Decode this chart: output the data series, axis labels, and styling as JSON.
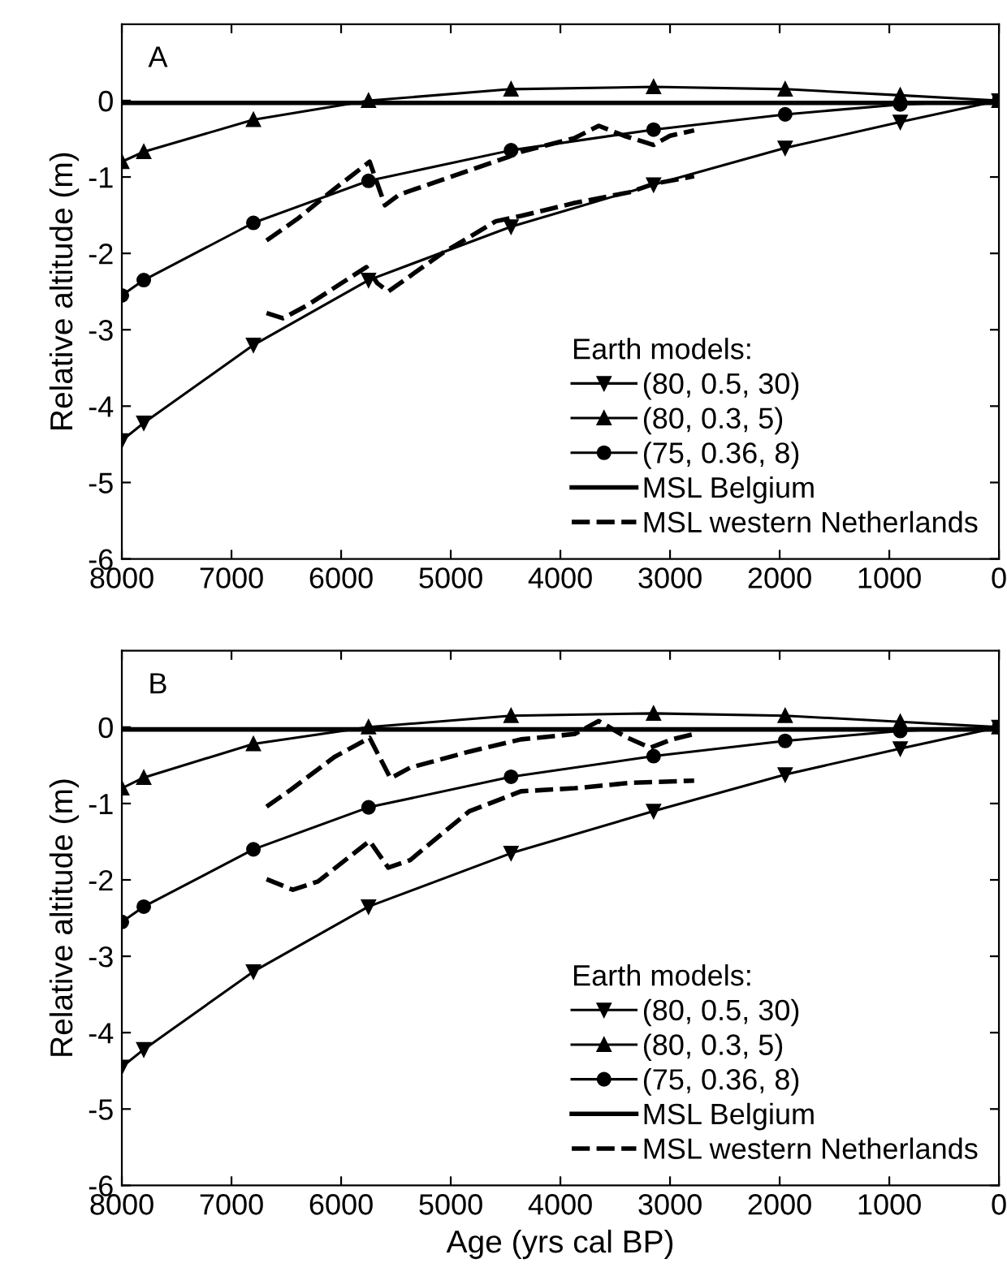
{
  "chart_data": [
    {
      "type": "line",
      "title": "A",
      "ylabel": "Relative altitude (m)",
      "legend_title": "Earth models:",
      "legend": "lower right",
      "grid": false,
      "xlim": [
        8000,
        0
      ],
      "ylim": [
        -6,
        1
      ],
      "xticks": [
        8000,
        7000,
        6000,
        5000,
        4000,
        3000,
        2000,
        1000,
        0
      ],
      "yticks": [
        -6,
        -5,
        -4,
        -3,
        -2,
        -1,
        0
      ],
      "series": [
        {
          "name": "(80, 0.5, 30)",
          "color": "#000000",
          "marker": "triangle_down",
          "line_style": "solid",
          "x": [
            8000,
            7800,
            6800,
            5750,
            4450,
            3150,
            1950,
            900,
            0
          ],
          "values": [
            -4.45,
            -4.22,
            -3.2,
            -2.35,
            -1.65,
            -1.1,
            -0.62,
            -0.28,
            0
          ]
        },
        {
          "name": "(80, 0.3, 5)",
          "color": "#000000",
          "marker": "triangle",
          "line_style": "solid",
          "x": [
            8000,
            7800,
            6800,
            5750,
            4450,
            3150,
            1950,
            900,
            0
          ],
          "values": [
            -0.8,
            -0.67,
            -0.25,
            0.0,
            0.15,
            0.18,
            0.15,
            0.07,
            0
          ]
        },
        {
          "name": "(75, 0.36, 8)",
          "color": "#000000",
          "marker": "circle",
          "line_style": "solid",
          "x": [
            8000,
            7800,
            6800,
            5750,
            4450,
            3150,
            1950,
            900,
            0
          ],
          "values": [
            -2.55,
            -2.35,
            -1.6,
            -1.05,
            -0.65,
            -0.38,
            -0.18,
            -0.05,
            0
          ]
        },
        {
          "name": "MSL Belgium",
          "color": "#000000",
          "marker": "none",
          "line_style": "solid",
          "x": [
            8000,
            0
          ],
          "values": [
            -0.03,
            -0.03
          ]
        },
        {
          "name": "MSL western Netherlands",
          "color": "#000000",
          "marker": "none",
          "line_style": "dashed",
          "x": [
            6680,
            6400,
            6100,
            5740,
            5600,
            5470,
            4480,
            4360,
            3870,
            3650,
            3420,
            3150,
            3000,
            2780
          ],
          "values": [
            -1.83,
            -1.55,
            -1.2,
            -0.8,
            -1.37,
            -1.23,
            -0.74,
            -0.67,
            -0.49,
            -0.33,
            -0.46,
            -0.58,
            -0.46,
            -0.39
          ]
        },
        {
          "color": "#000000",
          "marker": "none",
          "line_style": "dashed",
          "x": [
            6680,
            6530,
            6310,
            5770,
            5670,
            5570,
            5080,
            4590,
            4360,
            3870,
            3370,
            3150,
            2780
          ],
          "values": [
            -2.78,
            -2.85,
            -2.68,
            -2.18,
            -2.39,
            -2.5,
            -2.0,
            -1.58,
            -1.51,
            -1.34,
            -1.2,
            -1.09,
            -0.99
          ]
        }
      ]
    },
    {
      "type": "line",
      "title": "B",
      "xlabel": "Age (yrs cal BP)",
      "ylabel": "Relative altitude (m)",
      "legend_title": "Earth models:",
      "legend": "lower right",
      "grid": false,
      "xlim": [
        8000,
        0
      ],
      "ylim": [
        -6,
        1
      ],
      "xticks": [
        8000,
        7000,
        6000,
        5000,
        4000,
        3000,
        2000,
        1000,
        0
      ],
      "yticks": [
        -6,
        -5,
        -4,
        -3,
        -2,
        -1,
        0
      ],
      "series": [
        {
          "name": "(80, 0.5, 30)",
          "color": "#000000",
          "marker": "triangle_down",
          "line_style": "solid",
          "x": [
            8000,
            7800,
            6800,
            5750,
            4450,
            3150,
            1950,
            900,
            0
          ],
          "values": [
            -4.45,
            -4.22,
            -3.2,
            -2.35,
            -1.65,
            -1.1,
            -0.62,
            -0.28,
            0
          ]
        },
        {
          "name": "(80, 0.3, 5)",
          "color": "#000000",
          "marker": "triangle",
          "line_style": "solid",
          "x": [
            8000,
            7800,
            6800,
            5750,
            4450,
            3150,
            1950,
            900,
            0
          ],
          "values": [
            -0.8,
            -0.66,
            -0.22,
            0.0,
            0.15,
            0.18,
            0.15,
            0.07,
            0
          ]
        },
        {
          "name": "(75, 0.36, 8)",
          "color": "#000000",
          "marker": "circle",
          "line_style": "solid",
          "x": [
            8000,
            7800,
            6800,
            5750,
            4450,
            3150,
            1950,
            900,
            0
          ],
          "values": [
            -2.55,
            -2.35,
            -1.6,
            -1.05,
            -0.65,
            -0.38,
            -0.18,
            -0.05,
            0
          ]
        },
        {
          "name": "MSL Belgium",
          "color": "#000000",
          "marker": "none",
          "line_style": "solid",
          "x": [
            8000,
            0
          ],
          "values": [
            -0.03,
            -0.03
          ]
        },
        {
          "name": "MSL western Netherlands",
          "color": "#000000",
          "marker": "none",
          "line_style": "dashed",
          "x": [
            6680,
            6460,
            6060,
            5740,
            5550,
            5370,
            4830,
            4360,
            3870,
            3650,
            3400,
            3180,
            2980,
            2780
          ],
          "values": [
            -1.04,
            -0.82,
            -0.39,
            -0.14,
            -0.67,
            -0.53,
            -0.32,
            -0.16,
            -0.09,
            0.08,
            -0.13,
            -0.27,
            -0.16,
            -0.09
          ]
        },
        {
          "color": "#000000",
          "marker": "none",
          "line_style": "dashed",
          "x": [
            6680,
            6440,
            6210,
            5740,
            5570,
            5370,
            4830,
            4360,
            3870,
            3370,
            2780
          ],
          "values": [
            -1.99,
            -2.13,
            -2.02,
            -1.49,
            -1.84,
            -1.74,
            -1.1,
            -0.84,
            -0.8,
            -0.73,
            -0.7
          ]
        }
      ]
    }
  ]
}
